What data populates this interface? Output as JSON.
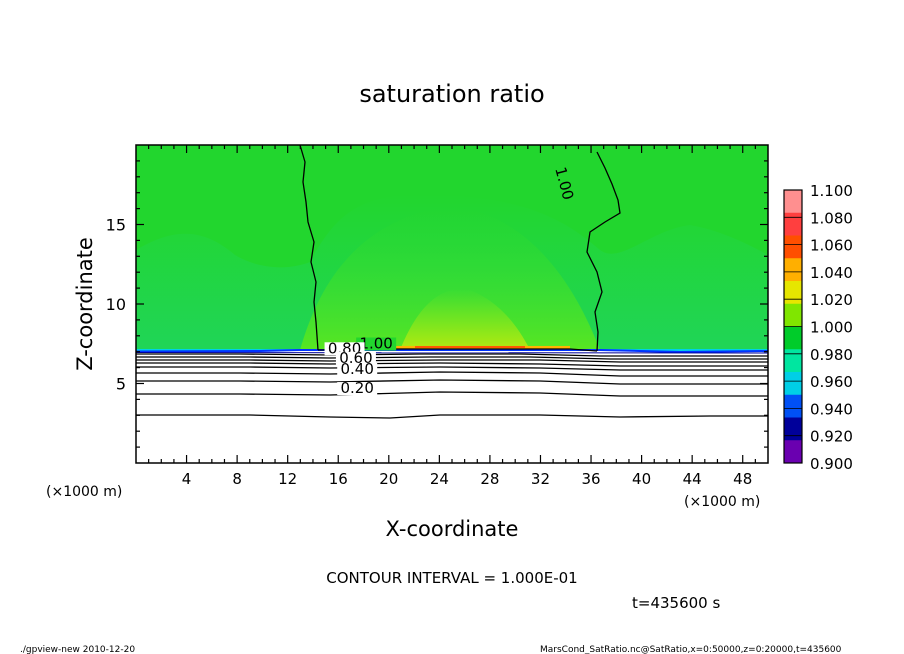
{
  "chart_data": {
    "type": "heatmap",
    "title": "saturation ratio",
    "xlabel": "X-coordinate",
    "ylabel": "Z-coordinate",
    "x_unit_left": "(×1000 m)",
    "x_unit_right": "(×1000 m)",
    "xlim": [
      0,
      50
    ],
    "ylim": [
      0,
      20
    ],
    "xticks": [
      "4",
      "8",
      "12",
      "16",
      "20",
      "24",
      "28",
      "32",
      "36",
      "40",
      "44",
      "48"
    ],
    "xtick_values": [
      4,
      8,
      12,
      16,
      20,
      24,
      28,
      32,
      36,
      40,
      44,
      48
    ],
    "yticks": [
      "5",
      "10",
      "15"
    ],
    "ytick_values": [
      5,
      10,
      15
    ],
    "colorbar": {
      "levels": [
        "1.100",
        "1.080",
        "1.060",
        "1.040",
        "1.020",
        "1.000",
        "0.980",
        "0.960",
        "0.940",
        "0.920",
        "0.900"
      ],
      "colors": [
        "#ff8f8f",
        "#ff3f3f",
        "#ff4f00",
        "#ffaf00",
        "#e6e600",
        "#80e600",
        "#00cc2a",
        "#00e6a0",
        "#00cfe6",
        "#0050f5",
        "#00009a",
        "#6a00b0"
      ]
    },
    "contour_labels": [
      {
        "text": "1.00",
        "x": 33.5,
        "z": 17.5
      },
      {
        "text": "1.00",
        "x": 19.0,
        "z": 7.2
      },
      {
        "text": "0.80",
        "x": 16.5,
        "z": 6.9
      },
      {
        "text": "0.60",
        "x": 17.4,
        "z": 6.3
      },
      {
        "text": "0.40",
        "x": 17.5,
        "z": 5.6
      },
      {
        "text": "0.20",
        "x": 17.5,
        "z": 4.4
      }
    ],
    "contour_interval_text": "CONTOUR INTERVAL = 1.000E-01",
    "time_text": "t=435600 s"
  },
  "footer": {
    "left": "./gpview-new  2010-12-20",
    "right": "MarsCond_SatRatio.nc@SatRatio,x=0:50000,z=0:20000,t=435600"
  }
}
